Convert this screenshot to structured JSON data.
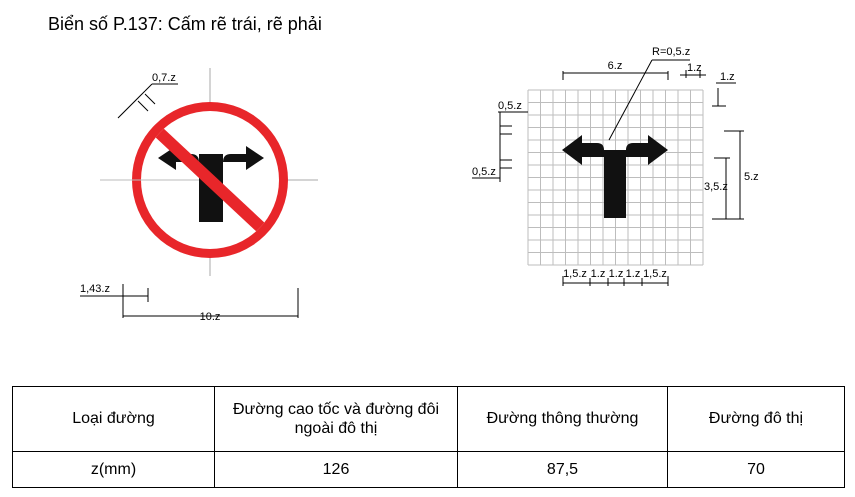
{
  "title": "Biển số P.137: Cấm rẽ trái, rẽ phải",
  "left_diagram": {
    "dim_border": "0,7.z",
    "dim_margin": "1,43.z",
    "dim_diameter": "10.z",
    "colors": {
      "ring": "#e8262a",
      "arrow": "#111111",
      "bar": "#e8262a"
    }
  },
  "right_diagram": {
    "dim_radius": "R=0,5.z",
    "dim_width": "6.z",
    "dim_head": "1.z",
    "dim_grid": "1.z",
    "dim_upper": "0,5.z",
    "dim_lower": "0,5.z",
    "dim_total_height": "5.z",
    "dim_stem_height": "3,5.z",
    "bottom_dims": [
      "1,5.z",
      "1.z",
      "1.z",
      "1.z",
      "1,5.z"
    ]
  },
  "table": {
    "header": [
      "Loại đường",
      "Đường cao tốc và đường đôi ngoài đô thị",
      "Đường thông thường",
      "Đường đô thị"
    ],
    "values": [
      "z(mm)",
      "126",
      "87,5",
      "70"
    ]
  }
}
